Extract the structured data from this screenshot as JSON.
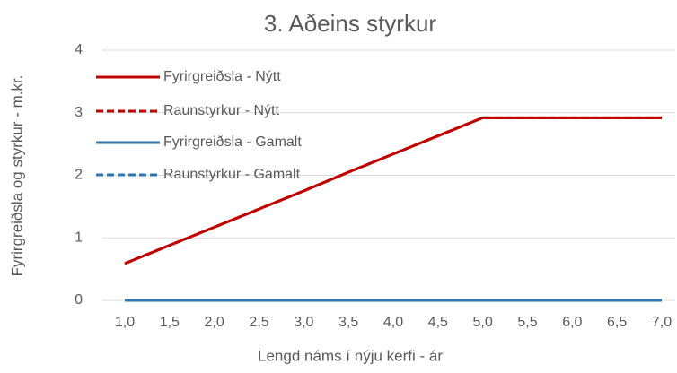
{
  "chart_data": {
    "type": "line",
    "title": "3. Aðeins styrkur",
    "x_label": "Lengd náms í nýju kerfi - ár",
    "y_label": "Fyrirgreiðsla og styrkur - m.kr.",
    "categories": [
      "1,0",
      "1,5",
      "2,0",
      "2,5",
      "3,0",
      "3,5",
      "4,0",
      "4,5",
      "5,0",
      "5,5",
      "6,0",
      "6,5",
      "7,0"
    ],
    "series": [
      {
        "name": "Fyrirgreiðsla - Nýtt",
        "color": "#c00000",
        "dash": false,
        "values": [
          0.59,
          0.88,
          1.17,
          1.46,
          1.75,
          2.05,
          2.34,
          2.63,
          2.92,
          2.92,
          2.92,
          2.92,
          2.92
        ]
      },
      {
        "name": "Raunstyrkur - Nýtt",
        "color": "#c00000",
        "dash": true,
        "values": [
          0.59,
          0.88,
          1.17,
          1.46,
          1.75,
          2.05,
          2.34,
          2.63,
          2.92,
          2.92,
          2.92,
          2.92,
          2.92
        ]
      },
      {
        "name": "Fyrirgreiðsla - Gamalt",
        "color": "#2e75b6",
        "dash": false,
        "values": [
          0,
          0,
          0,
          0,
          0,
          0,
          0,
          0,
          0,
          0,
          0,
          0,
          0
        ]
      },
      {
        "name": "Raunstyrkur - Gamalt",
        "color": "#2e75b6",
        "dash": true,
        "values": [
          0,
          0,
          0,
          0,
          0,
          0,
          0,
          0,
          0,
          0,
          0,
          0,
          0
        ]
      }
    ],
    "ylim": [
      0,
      4
    ],
    "yticks": [
      0,
      1,
      2,
      3,
      4
    ],
    "grid": true,
    "legend": "upper-left"
  }
}
